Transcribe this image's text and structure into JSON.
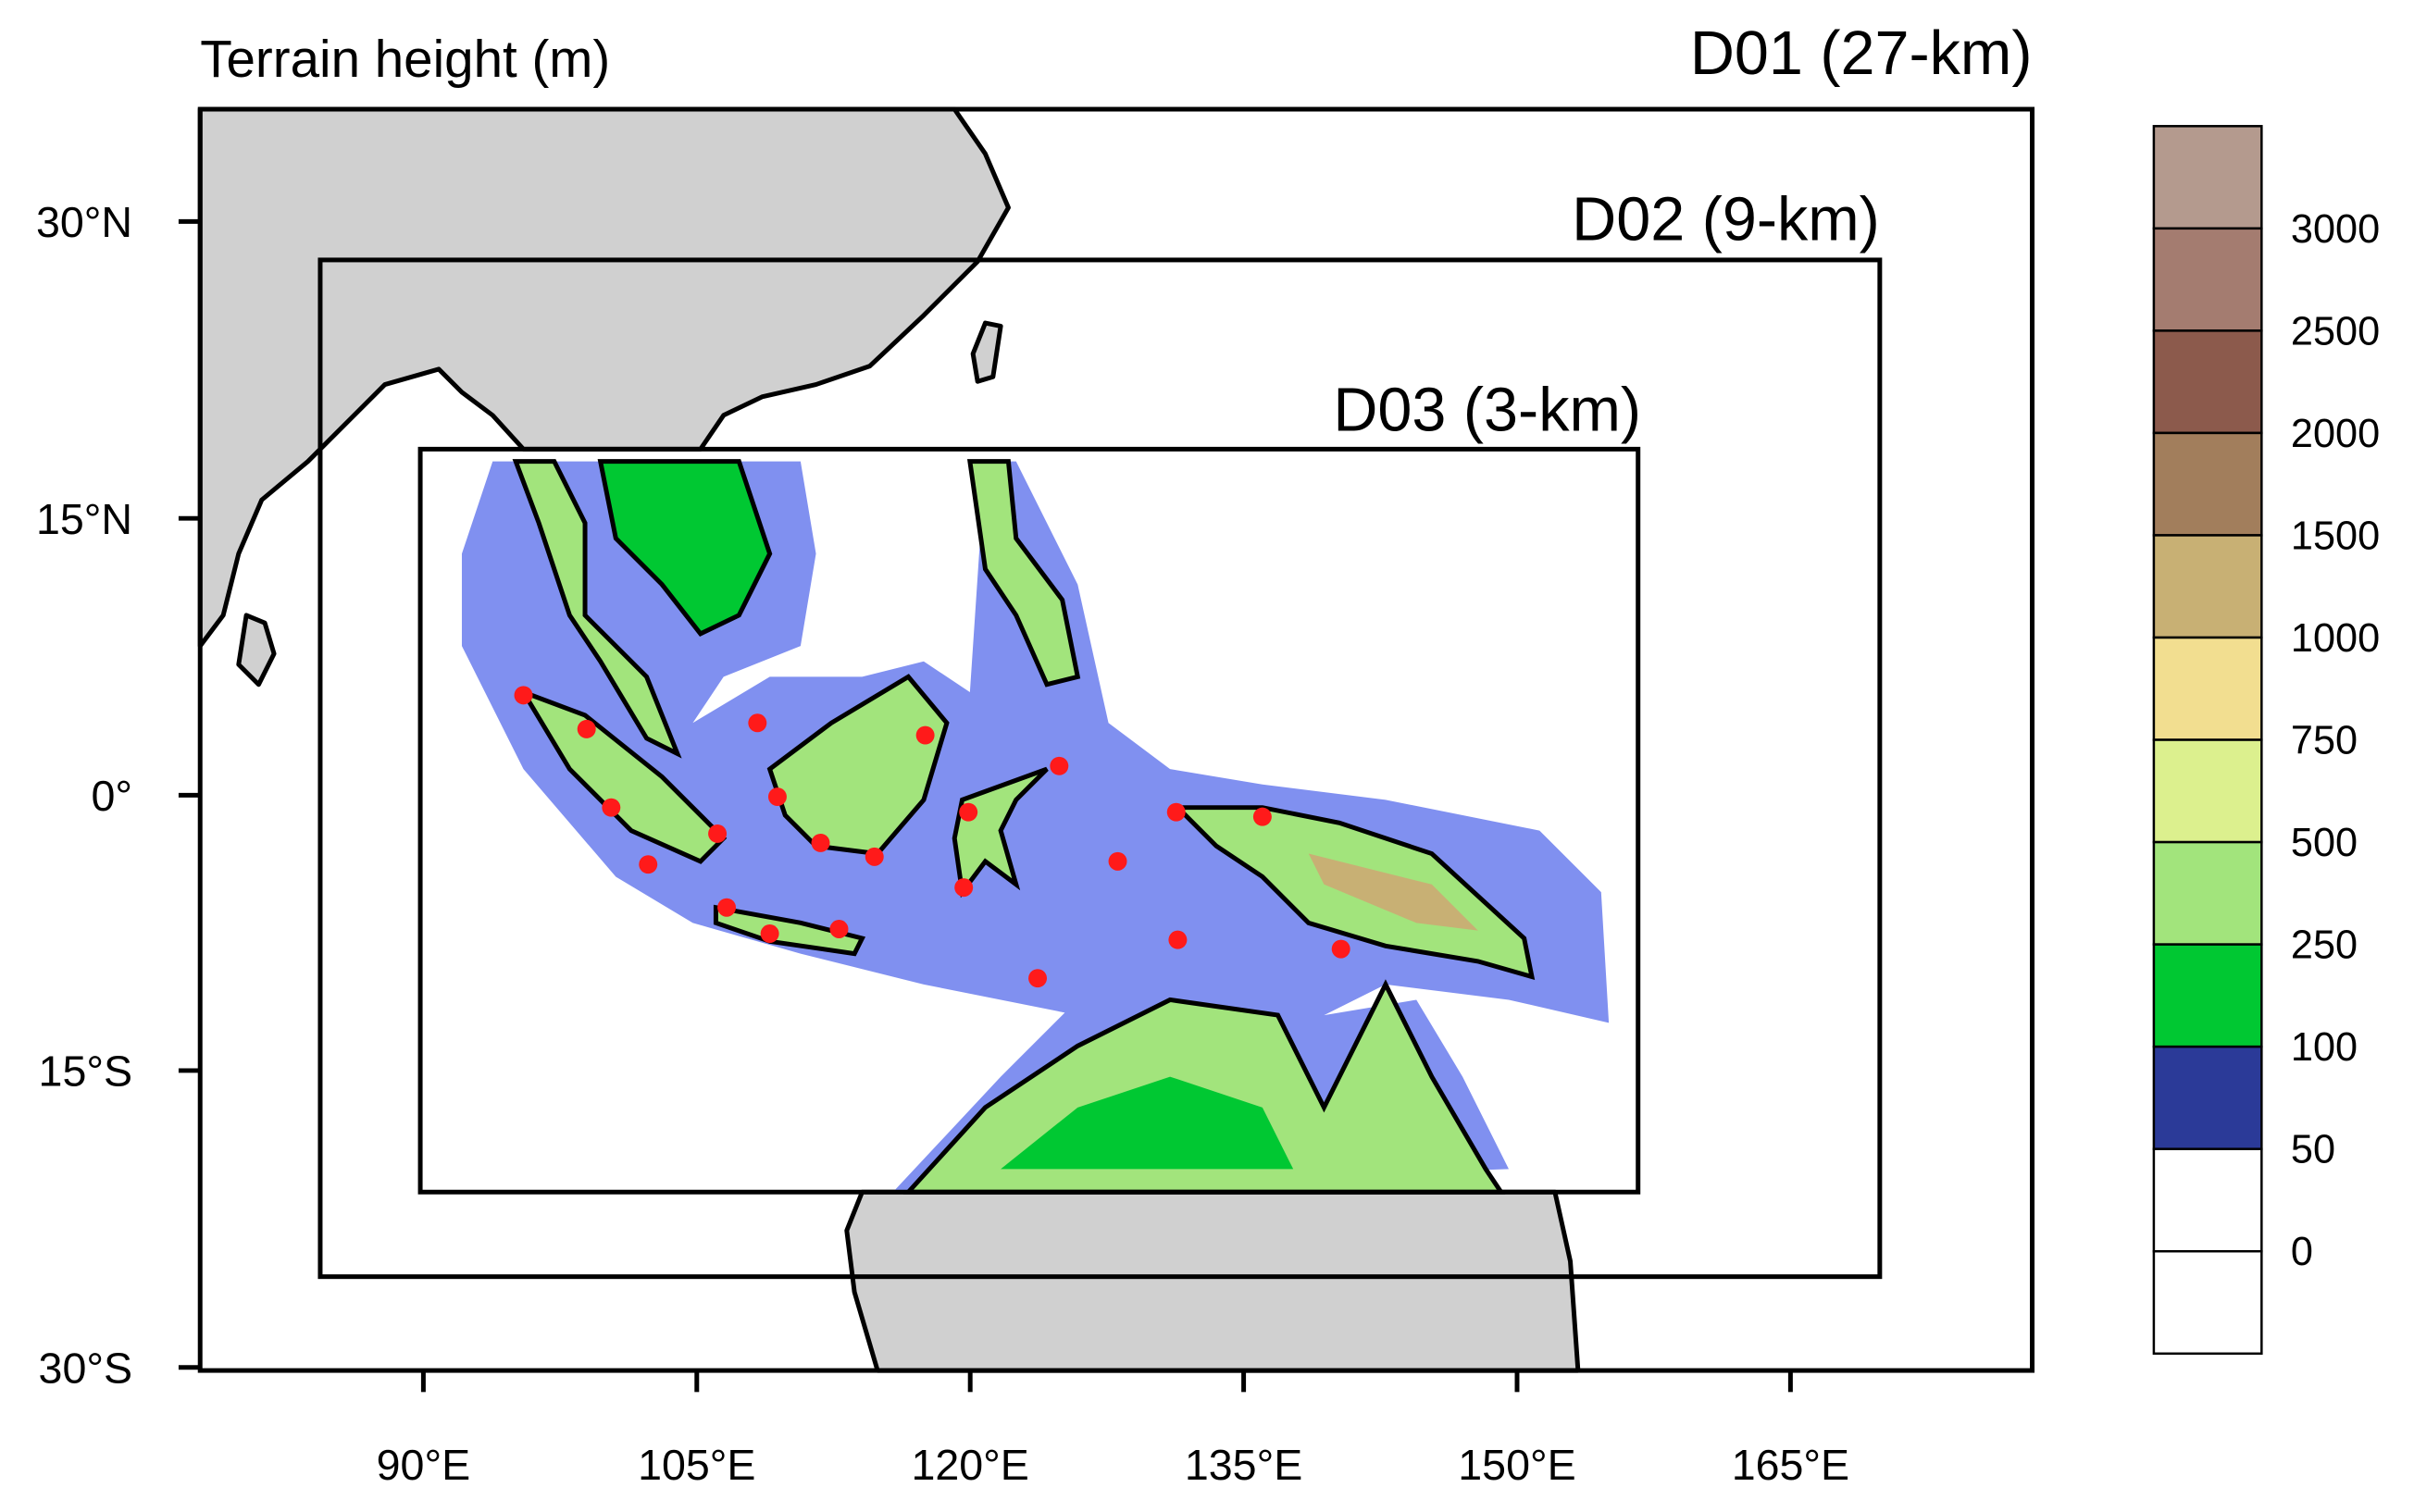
{
  "title": "Terrain height (m)",
  "domains": [
    {
      "label": "D01 (27-km)"
    },
    {
      "label": "D02 (9-km)"
    },
    {
      "label": "D03 (3-km)"
    }
  ],
  "lat_labels": [
    "30°N",
    "15°N",
    "0°",
    "15°S",
    "30°S"
  ],
  "lon_labels": [
    "90°E",
    "105°E",
    "120°E",
    "135°E",
    "150°E",
    "165°E"
  ],
  "colorbar": {
    "levels": [
      0,
      50,
      100,
      250,
      500,
      750,
      1000,
      1500,
      2000,
      2500,
      3000
    ],
    "colors": [
      "#ffffff",
      "#ffffff",
      "#2b3a98",
      "#00c832",
      "#a2e47c",
      "#dcf08e",
      "#f2de90",
      "#c8b074",
      "#a27e5c",
      "#8c5a4c",
      "#a47c70",
      "#b49a8e"
    ]
  }
}
